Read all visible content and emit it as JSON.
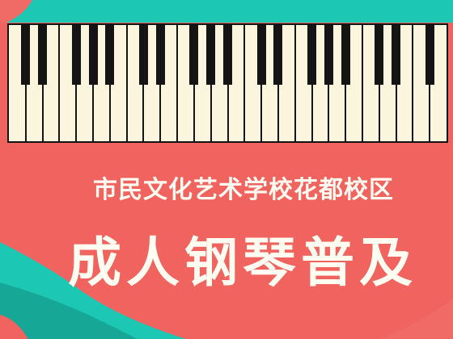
{
  "poster": {
    "subtitle": "市民文化艺术学校花都校区",
    "title": "成人钢琴普及"
  },
  "colors": {
    "background": "#f0635f",
    "teal": "#1cc7b4",
    "dark_teal": "#17a796",
    "keys_white": "#fbf5de",
    "keys_black": "#141414",
    "text": "#fffdf2"
  },
  "keyboard": {
    "white_keys": 26,
    "black_key_pattern": [
      1,
      1,
      0,
      1,
      1,
      1,
      0
    ]
  }
}
